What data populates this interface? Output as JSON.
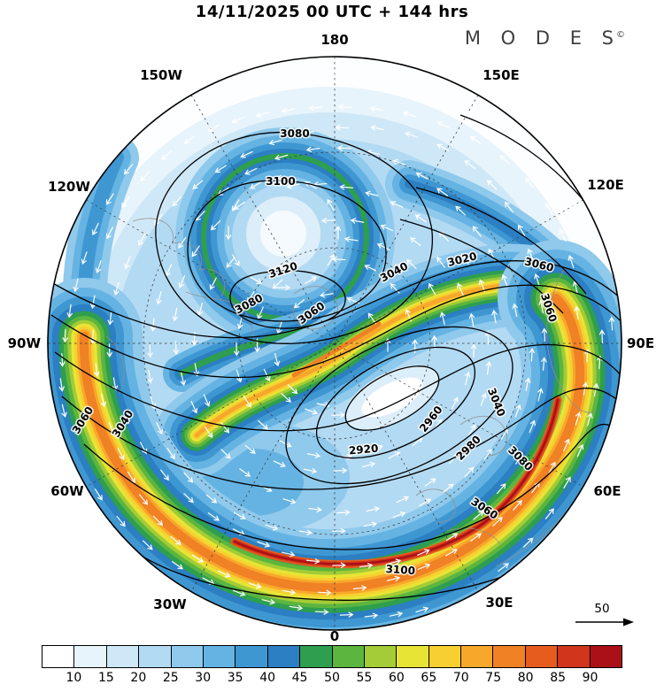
{
  "header": {
    "title": "14/11/2025  00 UTC  + 144 hrs",
    "brand": "M O D E S",
    "brand_mark": "©"
  },
  "chart_data": {
    "type": "contour-map",
    "projection": "northern-hemisphere polar stereographic",
    "title": "14/11/2025 00 UTC + 144 hrs",
    "valid": {
      "date": "14/11/2025",
      "cycle": "00 UTC",
      "lead": "+ 144 hrs"
    },
    "longitude_labels": [
      "180",
      "150W",
      "150E",
      "120W",
      "120E",
      "90W",
      "90E",
      "60W",
      "60E",
      "30W",
      "30E",
      "0"
    ],
    "contours": {
      "variable": "height",
      "interval": 20,
      "min_labeled": 2920,
      "max_labeled": 3120,
      "labels": [
        "3080",
        "3100",
        "3120",
        "3080",
        "3060",
        "3040",
        "3020",
        "3060",
        "3060",
        "3060",
        "3040",
        "2920",
        "2960",
        "2980",
        "3040",
        "3080",
        "3060",
        "3100"
      ]
    },
    "shading": {
      "variable": "wind speed",
      "ticks": [
        "10",
        "15",
        "20",
        "25",
        "30",
        "35",
        "40",
        "45",
        "50",
        "55",
        "60",
        "65",
        "70",
        "75",
        "80",
        "85",
        "90"
      ],
      "colors": [
        "#ffffff",
        "#e8f4fb",
        "#cfe8f7",
        "#b3daf3",
        "#8fc9ec",
        "#65b3e2",
        "#3f97d2",
        "#2b7fc2",
        "#2e9e4f",
        "#5cb53e",
        "#a3cc36",
        "#e8e436",
        "#f7cf31",
        "#f7a82b",
        "#f08124",
        "#e55c1e",
        "#d1351c",
        "#aa1016"
      ]
    },
    "reference_vector": {
      "label": "50"
    }
  }
}
